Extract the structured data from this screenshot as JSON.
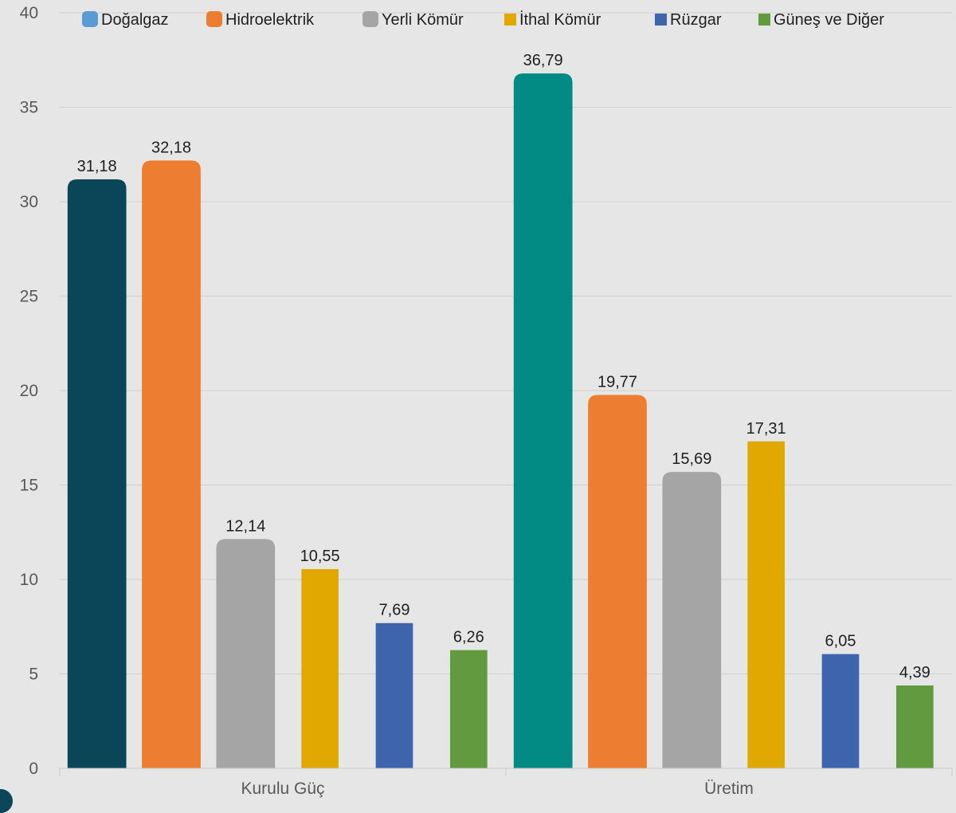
{
  "chart_data": {
    "type": "bar",
    "categories": [
      "Kurulu Güç",
      "Üretim"
    ],
    "series": [
      {
        "name": "Doğalgaz",
        "values": [
          31.18,
          36.79
        ],
        "colors": [
          "#0b4658",
          "#028a85"
        ],
        "legend_color": "#5b9bd5",
        "legend_shape": "rounded"
      },
      {
        "name": "Hidroelektrik",
        "values": [
          32.18,
          19.77
        ],
        "colors": [
          "#ed7d31",
          "#ed7d31"
        ],
        "legend_color": "#ed7d31",
        "legend_shape": "rounded"
      },
      {
        "name": "Yerli Kömür",
        "values": [
          12.14,
          15.69
        ],
        "colors": [
          "#a5a5a5",
          "#a5a5a5"
        ],
        "legend_color": "#a5a5a5",
        "legend_shape": "rounded"
      },
      {
        "name": "İthal Kömür",
        "values": [
          10.55,
          17.31
        ],
        "colors": [
          "#e0a800",
          "#e0a800"
        ],
        "legend_color": "#e0a800",
        "legend_shape": "square"
      },
      {
        "name": "Rüzgar",
        "values": [
          7.69,
          6.05
        ],
        "colors": [
          "#3e64ae",
          "#3e64ae"
        ],
        "legend_color": "#3e64ae",
        "legend_shape": "square"
      },
      {
        "name": "Güneş ve Diğer",
        "values": [
          6.26,
          4.39
        ],
        "colors": [
          "#629a3f",
          "#629a3f"
        ],
        "legend_color": "#629a3f",
        "legend_shape": "square"
      }
    ],
    "data_labels": [
      [
        "31,18",
        "36,79"
      ],
      [
        "32,18",
        "19,77"
      ],
      [
        "12,14",
        "15,69"
      ],
      [
        "10,55",
        "17,31"
      ],
      [
        "7,69",
        "6,05"
      ],
      [
        "6,26",
        "4,39"
      ]
    ],
    "ylim": [
      0,
      40
    ],
    "yticks": [
      0,
      5,
      10,
      15,
      20,
      25,
      30,
      35,
      40
    ],
    "ytick_labels": [
      "0",
      "5",
      "10",
      "15",
      "20",
      "25",
      "30",
      "35",
      "40"
    ],
    "xlabel": "",
    "ylabel": "",
    "title": "",
    "grid": true,
    "legend_position": "top",
    "background": "#e6e6e6"
  }
}
